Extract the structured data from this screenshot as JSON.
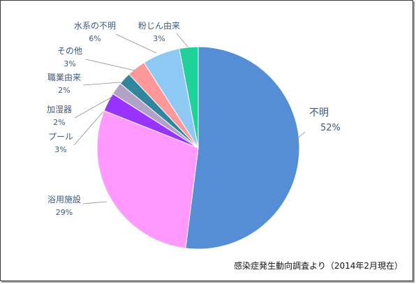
{
  "chart_data": {
    "type": "pie",
    "title": "",
    "slices": [
      {
        "label": "不明",
        "value": 52,
        "percent_text": "52%",
        "color": "#558ed5"
      },
      {
        "label": "浴用施設",
        "value": 29,
        "percent_text": "29%",
        "color": "#ff99ff"
      },
      {
        "label": "プール",
        "value": 3,
        "percent_text": "3%",
        "color": "#9933ff"
      },
      {
        "label": "加湿器",
        "value": 2,
        "percent_text": "2%",
        "color": "#b3a2c7"
      },
      {
        "label": "職業由来",
        "value": 2,
        "percent_text": "2%",
        "color": "#31859c"
      },
      {
        "label": "その他",
        "value": 3,
        "percent_text": "3%",
        "color": "#ff9999"
      },
      {
        "label": "水系の不明",
        "value": 6,
        "percent_text": "6%",
        "color": "#8ec9f4"
      },
      {
        "label": "粉じん由来",
        "value": 3,
        "percent_text": "3%",
        "color": "#1fd29a"
      }
    ],
    "start_direction": "12 o'clock",
    "order": "clockwise"
  },
  "source_note": "感染症発生動向調査より（2014年2月現在）"
}
